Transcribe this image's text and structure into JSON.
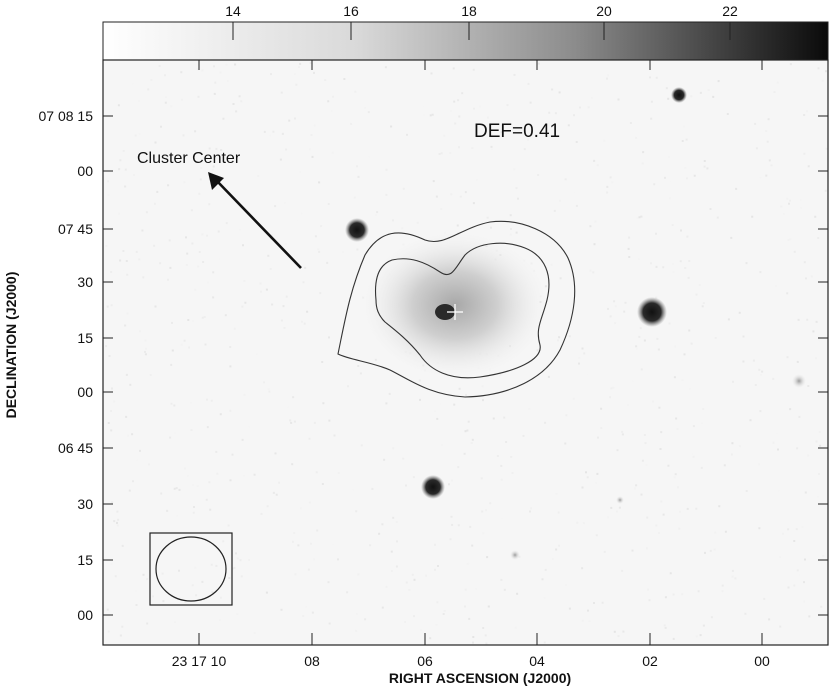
{
  "colorbar": {
    "ticks": [
      "14",
      "16",
      "18",
      "20",
      "22"
    ]
  },
  "axes": {
    "xlabel": "RIGHT ASCENSION (J2000)",
    "ylabel": "DECLINATION (J2000)",
    "x_ticks": [
      "23 17 10",
      "08",
      "06",
      "04",
      "02",
      "00"
    ],
    "y_ticks": [
      "07 08 15",
      "00",
      "07 45",
      "30",
      "15",
      "00",
      "06 45",
      "30",
      "15",
      "00"
    ]
  },
  "annotations": {
    "def_label": "DEF=0.41",
    "cluster_label": "Cluster Center"
  },
  "colors": {
    "frame": "#222222",
    "background": "#f6f6f6",
    "contour": "#333333"
  }
}
